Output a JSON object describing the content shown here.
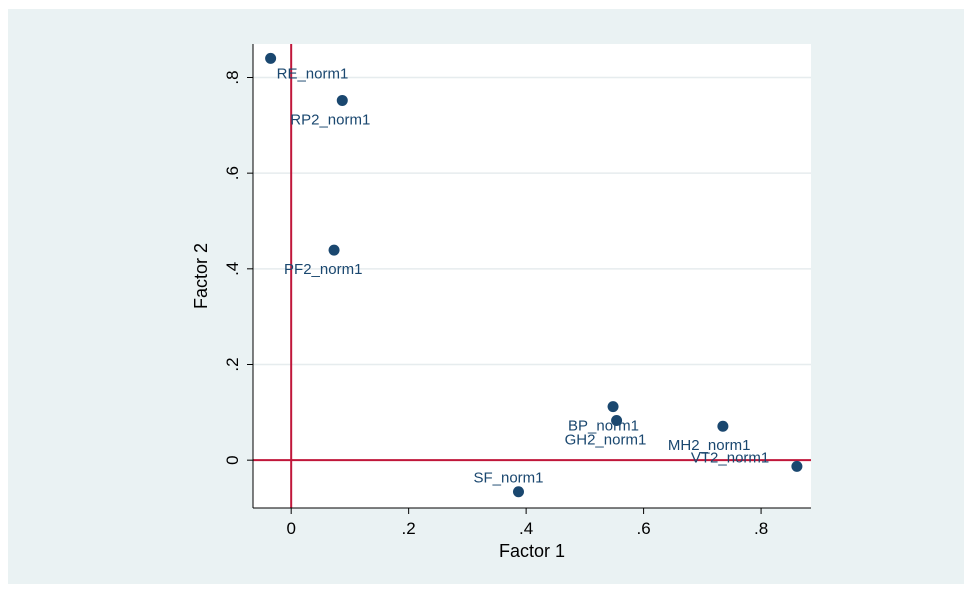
{
  "chart_data": {
    "type": "scatter",
    "title": "",
    "xlabel": "Factor 1",
    "ylabel": "Factor 2",
    "xlim": [
      -0.065,
      0.885
    ],
    "ylim": [
      -0.1,
      0.87
    ],
    "x_ticks": [
      0,
      0.2,
      0.4,
      0.6,
      0.8
    ],
    "x_tick_labels": [
      "0",
      ".2",
      ".4",
      ".6",
      ".8"
    ],
    "y_ticks": [
      0,
      0.2,
      0.4,
      0.6,
      0.8
    ],
    "y_tick_labels": [
      "0",
      ".2",
      ".4",
      ".6",
      ".8"
    ],
    "grid": "horizontal",
    "reference_lines": {
      "x": 0,
      "y": 0,
      "color": "#c0163a"
    },
    "marker_color": "#1a476f",
    "background": "#eaf2f3",
    "points": [
      {
        "label": "RE_norm1",
        "x": -0.035,
        "y": 0.84
      },
      {
        "label": "RP2_norm1",
        "x": 0.087,
        "y": 0.752
      },
      {
        "label": "PF2_norm1",
        "x": 0.073,
        "y": 0.439
      },
      {
        "label": "BP_norm1",
        "x": 0.548,
        "y": 0.112
      },
      {
        "label": "GH2_norm1",
        "x": 0.554,
        "y": 0.083
      },
      {
        "label": "MH2_norm1",
        "x": 0.735,
        "y": 0.071
      },
      {
        "label": "VT2_norm1",
        "x": 0.861,
        "y": -0.013
      },
      {
        "label": "SF_norm1",
        "x": 0.387,
        "y": -0.066
      }
    ]
  }
}
